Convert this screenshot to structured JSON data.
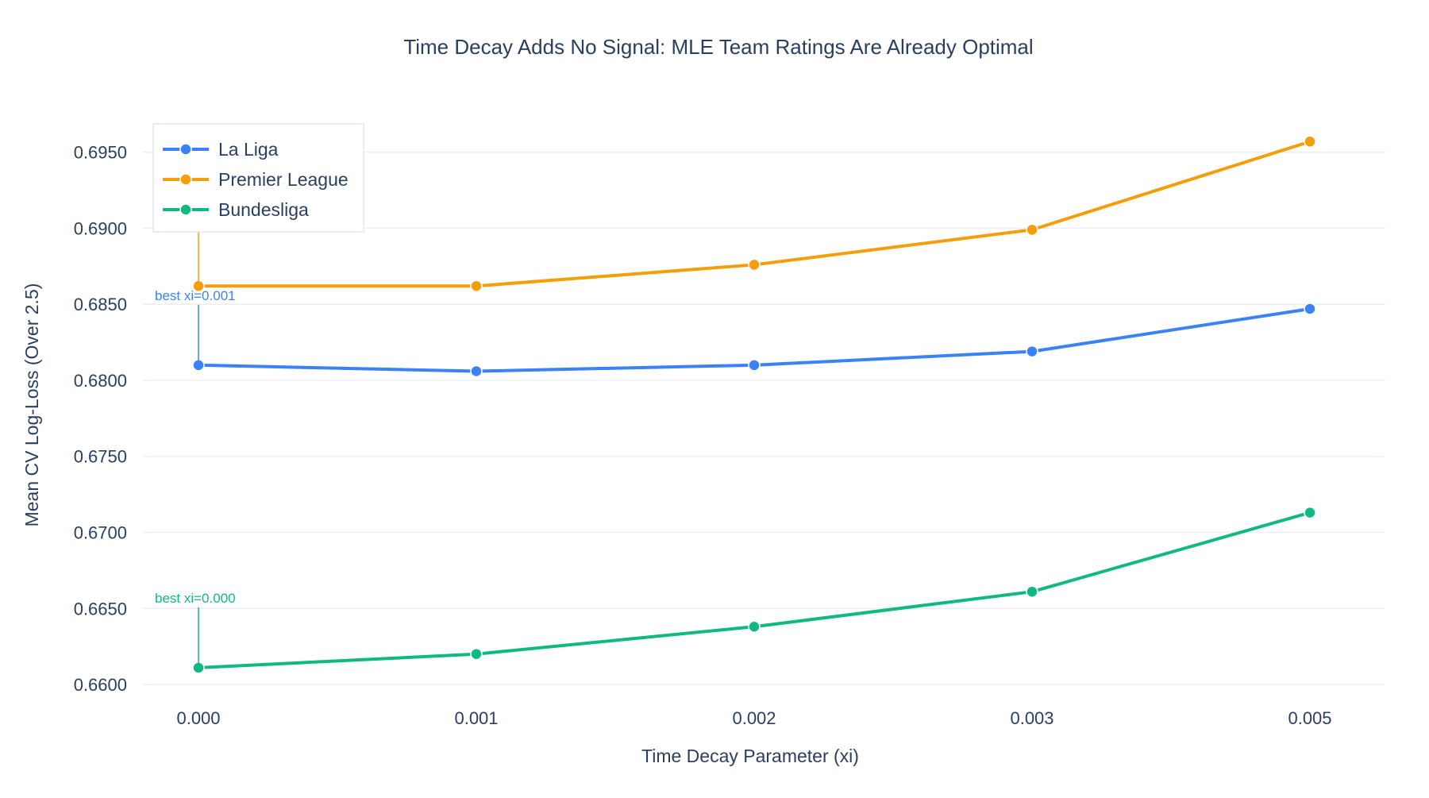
{
  "chart_data": {
    "type": "line",
    "title": "Time Decay Adds No Signal: MLE Team Ratings Are Already Optimal",
    "xlabel": "Time Decay Parameter (xi)",
    "ylabel": "Mean CV Log-Loss (Over 2.5)",
    "categories": [
      "0.000",
      "0.001",
      "0.002",
      "0.003",
      "0.005"
    ],
    "ylim": [
      0.6588,
      0.6977
    ],
    "yticks": [
      "0.6600",
      "0.6650",
      "0.6700",
      "0.6750",
      "0.6800",
      "0.6850",
      "0.6900",
      "0.6950"
    ],
    "grid": true,
    "legend_position": "top-left",
    "series": [
      {
        "name": "La Liga",
        "color": "#3b82f6",
        "values": [
          0.681,
          0.6806,
          0.681,
          0.6819,
          0.6847
        ]
      },
      {
        "name": "Premier League",
        "color": "#f59e0b",
        "values": [
          0.6862,
          0.6862,
          0.6876,
          0.6899,
          0.6957
        ]
      },
      {
        "name": "Bundesliga",
        "color": "#10b981",
        "values": [
          0.6611,
          0.662,
          0.6638,
          0.6661,
          0.6713
        ]
      }
    ],
    "annotations": [
      {
        "text": "best xi=0.001",
        "series": "La Liga",
        "category_index": 0
      },
      {
        "text": "best xi=0.000",
        "series": "Premier League",
        "category_index": 0
      },
      {
        "text": "best xi=0.000",
        "series": "Bundesliga",
        "category_index": 0
      }
    ]
  },
  "colors": {
    "title": "#2a3f5f",
    "axis_text": "#2a3f5f",
    "grid": "#ebeff5"
  }
}
